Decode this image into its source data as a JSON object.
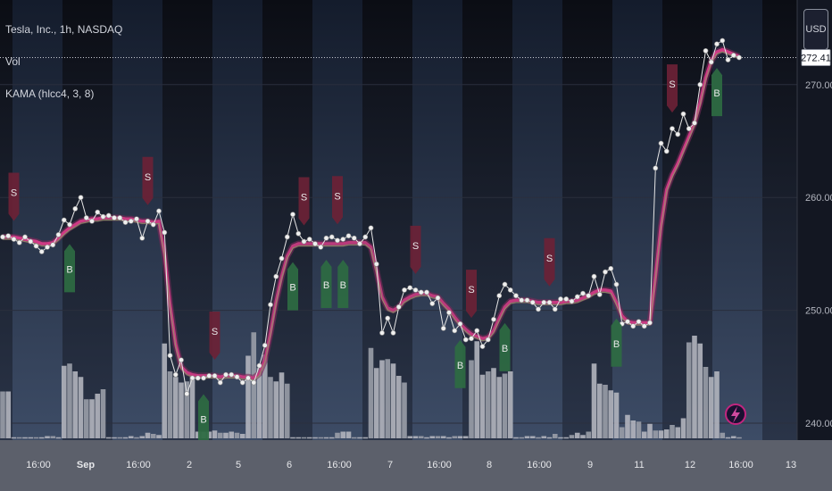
{
  "header": {
    "symbol_line": "Tesla, Inc., 1h, NASDAQ",
    "vol_label": "Vol",
    "indicator_label": "KAMA (hlcc4, 3, 8)",
    "currency_button": "USD"
  },
  "price_scale": {
    "last_price_label": "272.41",
    "tick_labels": [
      "270.00",
      "260.00",
      "250.00",
      "240.00"
    ]
  },
  "time_scale": {
    "tick_labels": [
      "16:00",
      "Sep",
      "16:00",
      "2",
      "5",
      "6",
      "16:00",
      "7",
      "16:00",
      "8",
      "16:00",
      "9",
      "11",
      "12",
      "16:00",
      "13"
    ]
  },
  "colors": {
    "background": "#131722",
    "price_line": "#e6e6e6",
    "kama_line": "#c2257f",
    "buy_marker": "#2e6b42",
    "sell_marker": "#6b2236",
    "volume_bar": "#b2b5be",
    "session_band_dark": "#0d1018",
    "session_band_light": "#1c2538"
  },
  "chart_data": {
    "type": "line",
    "title": "Tesla, Inc., 1h, NASDAQ",
    "xlabel": "",
    "ylabel": "",
    "x_labels": [
      "16:00",
      "Sep",
      "16:00",
      "2",
      "5",
      "6",
      "16:00",
      "7",
      "16:00",
      "8",
      "16:00",
      "9",
      "11",
      "12",
      "16:00",
      "13"
    ],
    "ylim": [
      238.5,
      277.5
    ],
    "grid": true,
    "series": [
      {
        "name": "Price",
        "values": [
          256.5,
          256.6,
          256.3,
          256.0,
          256.5,
          256.1,
          255.7,
          255.2,
          255.6,
          255.8,
          256.7,
          258.0,
          257.6,
          259.0,
          260.0,
          258.2,
          257.9,
          258.7,
          258.3,
          258.4,
          258.2,
          258.2,
          257.8,
          257.9,
          258.1,
          256.4,
          257.9,
          257.6,
          258.8,
          256.9,
          246.0,
          244.3,
          245.6,
          242.6,
          244.0,
          244.0,
          244.0,
          244.2,
          244.2,
          243.6,
          244.3,
          244.3,
          244.1,
          243.6,
          244.0,
          243.6,
          245.1,
          246.9,
          250.5,
          253.0,
          254.6,
          256.5,
          258.5,
          256.8,
          256.1,
          256.3,
          255.9,
          255.6,
          256.4,
          256.5,
          256.2,
          256.3,
          256.6,
          256.4,
          255.9,
          256.5,
          257.3,
          254.1,
          248.0,
          249.3,
          248.0,
          250.3,
          251.8,
          252.0,
          251.8,
          251.6,
          251.6,
          250.6,
          251.1,
          248.4,
          249.8,
          248.2,
          248.8,
          247.4,
          247.5,
          248.2,
          246.8,
          247.4,
          249.2,
          251.3,
          252.3,
          251.8,
          251.3,
          250.9,
          250.9,
          250.7,
          250.1,
          250.7,
          250.7,
          250.1,
          251.0,
          251.0,
          250.8,
          251.2,
          251.5,
          251.3,
          253.0,
          251.4,
          253.4,
          253.7,
          252.3,
          248.8,
          249.0,
          248.6,
          249.0,
          248.6,
          248.9,
          262.6,
          264.8,
          264.1,
          266.1,
          265.6,
          267.4,
          266.1,
          266.6,
          270.0,
          273.0,
          272.0,
          273.6,
          273.9,
          272.2,
          272.6,
          272.4
        ]
      },
      {
        "name": "KAMA (hlcc4, 3, 8)",
        "values": [
          256.5,
          256.5,
          256.5,
          256.4,
          256.3,
          256.2,
          256.1,
          255.9,
          255.9,
          256.0,
          256.4,
          256.9,
          257.3,
          257.6,
          257.9,
          258.0,
          258.1,
          258.1,
          258.2,
          258.2,
          258.2,
          258.2,
          258.1,
          258.1,
          258.0,
          257.9,
          257.9,
          257.8,
          257.9,
          255.0,
          250.5,
          247.0,
          245.0,
          244.5,
          244.3,
          244.2,
          244.2,
          244.2,
          244.2,
          244.1,
          244.2,
          244.2,
          244.2,
          244.1,
          244.1,
          244.0,
          244.4,
          245.6,
          248.0,
          250.8,
          253.0,
          254.8,
          255.7,
          255.9,
          255.9,
          255.9,
          255.9,
          255.9,
          255.9,
          255.9,
          255.9,
          255.9,
          256.0,
          256.0,
          256.0,
          256.0,
          255.6,
          253.5,
          251.2,
          250.2,
          250.0,
          250.3,
          250.9,
          251.2,
          251.4,
          251.5,
          251.5,
          251.3,
          251.2,
          250.6,
          250.1,
          249.4,
          248.8,
          248.3,
          247.9,
          247.7,
          247.5,
          247.6,
          248.2,
          249.3,
          250.3,
          250.8,
          250.9,
          250.9,
          250.9,
          250.8,
          250.7,
          250.7,
          250.7,
          250.7,
          250.7,
          250.8,
          250.8,
          250.9,
          251.1,
          251.3,
          251.6,
          251.8,
          251.8,
          251.7,
          250.7,
          249.5,
          249.0,
          248.9,
          248.9,
          248.9,
          248.9,
          253.0,
          257.5,
          260.7,
          262.0,
          263.0,
          264.2,
          265.4,
          266.6,
          268.4,
          270.6,
          272.1,
          272.9,
          273.1,
          272.9,
          272.7,
          272.5
        ]
      },
      {
        "name": "Vol",
        "values": [
          0.42,
          0.42,
          0.01,
          0.01,
          0.01,
          0.01,
          0.01,
          0.01,
          0.02,
          0.02,
          0.01,
          0.65,
          0.67,
          0.6,
          0.55,
          0.35,
          0.35,
          0.4,
          0.44,
          0.01,
          0.01,
          0.01,
          0.01,
          0.02,
          0.01,
          0.02,
          0.05,
          0.04,
          0.03,
          0.85,
          0.6,
          0.55,
          0.5,
          0.51,
          0.58,
          0.06,
          0.06,
          0.06,
          0.07,
          0.05,
          0.05,
          0.06,
          0.05,
          0.04,
          0.74,
          0.95,
          0.63,
          0.75,
          0.55,
          0.51,
          0.59,
          0.49,
          0.01,
          0.01,
          0.01,
          0.01,
          0.01,
          0.01,
          0.01,
          0.01,
          0.05,
          0.06,
          0.06,
          0.01,
          0.01,
          0.01,
          0.81,
          0.63,
          0.7,
          0.71,
          0.67,
          0.56,
          0.5,
          0.02,
          0.02,
          0.02,
          0.01,
          0.02,
          0.02,
          0.02,
          0.01,
          0.02,
          0.02,
          0.02,
          0.7,
          0.87,
          0.57,
          0.6,
          0.63,
          0.55,
          0.58,
          0.6,
          0.01,
          0.01,
          0.02,
          0.02,
          0.01,
          0.02,
          0.01,
          0.04,
          0.01,
          0.01,
          0.03,
          0.05,
          0.03,
          0.06,
          0.67,
          0.49,
          0.48,
          0.43,
          0.41,
          0.1,
          0.21,
          0.16,
          0.15,
          0.06,
          0.13,
          0.07,
          0.07,
          0.08,
          0.12,
          0.1,
          0.18,
          0.86,
          0.92,
          0.85,
          0.64,
          0.55,
          0.6,
          0.05,
          0.01,
          0.02,
          0.01,
          0.01,
          0.05
        ]
      }
    ],
    "signals": [
      {
        "type": "S",
        "index": 2
      },
      {
        "type": "B",
        "index": 12
      },
      {
        "type": "S",
        "index": 26
      },
      {
        "type": "B",
        "index": 36
      },
      {
        "type": "S",
        "index": 38
      },
      {
        "type": "B",
        "index": 52
      },
      {
        "type": "S",
        "index": 54
      },
      {
        "type": "B",
        "index": 58
      },
      {
        "type": "S",
        "index": 60
      },
      {
        "type": "B",
        "index": 61
      },
      {
        "type": "S",
        "index": 74
      },
      {
        "type": "B",
        "index": 82
      },
      {
        "type": "S",
        "index": 84
      },
      {
        "type": "B",
        "index": 90
      },
      {
        "type": "S",
        "index": 98
      },
      {
        "type": "B",
        "index": 110
      },
      {
        "type": "S",
        "index": 120
      },
      {
        "type": "B",
        "index": 128
      },
      {
        "type": "S",
        "index": 136
      },
      {
        "type": "B",
        "index": 142
      },
      {
        "type": "S",
        "index": 146
      },
      {
        "type": "B",
        "index": 152
      },
      {
        "type": "S",
        "index": 156
      },
      {
        "type": "B",
        "index": 162
      },
      {
        "type": "S",
        "index": 166
      }
    ]
  }
}
